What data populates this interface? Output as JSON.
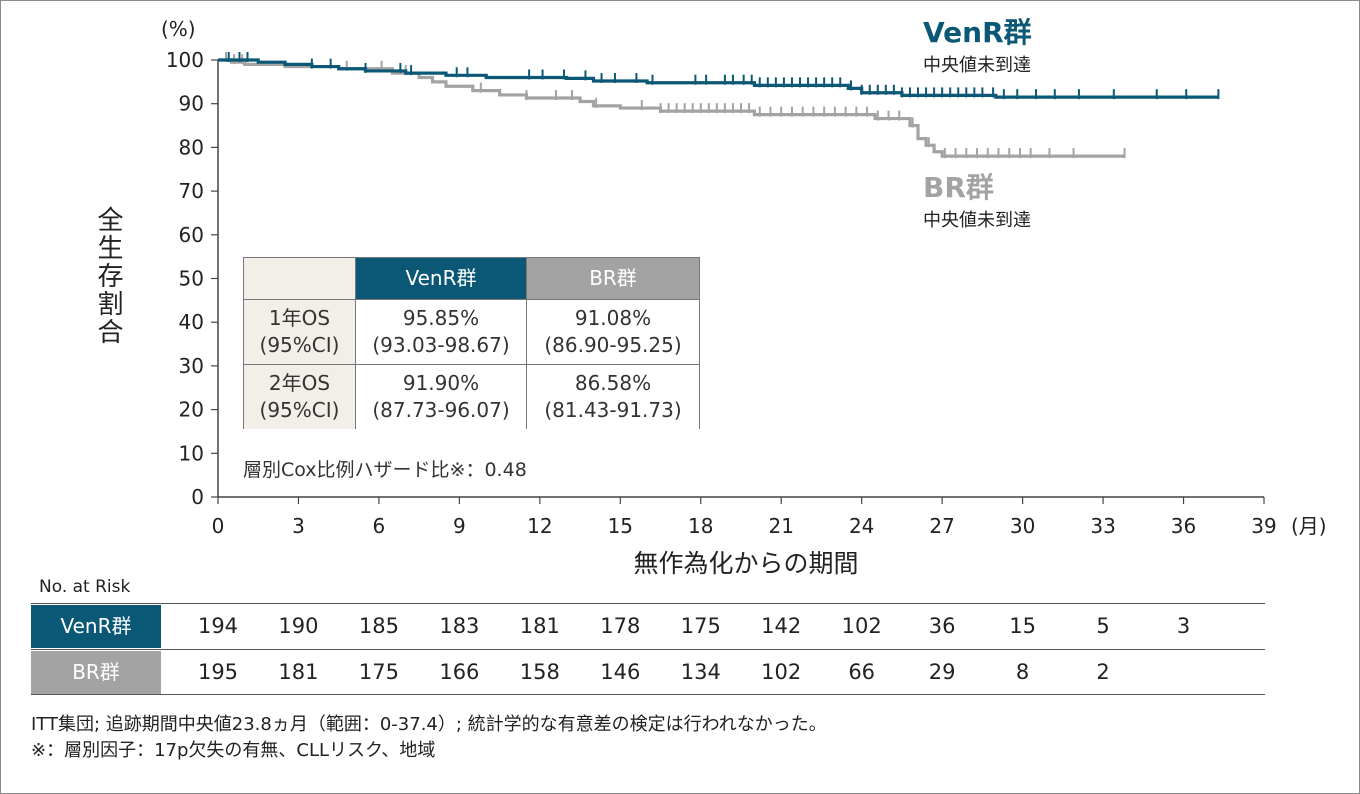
{
  "chart_data": {
    "type": "line",
    "chart_kind": "kaplan-meier",
    "xlabel": "無作為化からの期間",
    "ylabel": "全生存割合",
    "x_unit": "(月)",
    "y_unit": "(%)",
    "xlim": [
      0,
      39
    ],
    "ylim": [
      0,
      100
    ],
    "x_ticks": [
      0,
      3,
      6,
      9,
      12,
      15,
      18,
      21,
      24,
      27,
      30,
      33,
      36,
      39
    ],
    "y_ticks": [
      0,
      10,
      20,
      30,
      40,
      50,
      60,
      70,
      80,
      90,
      100
    ],
    "grid": false,
    "series": [
      {
        "name": "VenR群",
        "subtitle": "中央値未到達",
        "color": "#0b5876",
        "steps": [
          [
            0,
            100
          ],
          [
            1.5,
            99.5
          ],
          [
            2.5,
            99
          ],
          [
            3.5,
            98.5
          ],
          [
            4.5,
            98
          ],
          [
            5.5,
            97.5
          ],
          [
            7,
            97
          ],
          [
            8.5,
            96.5
          ],
          [
            10,
            96
          ],
          [
            13,
            95.8
          ],
          [
            14,
            95.2
          ],
          [
            16,
            94.8
          ],
          [
            20,
            94.2
          ],
          [
            23.5,
            93.5
          ],
          [
            24,
            92.5
          ],
          [
            25.5,
            91.9
          ],
          [
            29,
            91.5
          ],
          [
            37.3,
            91.5
          ]
        ],
        "censor_x": [
          0.4,
          0.8,
          1.1,
          3.5,
          4.2,
          5.5,
          6.8,
          7.2,
          8.9,
          9.3,
          11.6,
          12.1,
          12.9,
          13.7,
          14.3,
          14.8,
          15.6,
          16.2,
          17.8,
          18.2,
          18.9,
          19.2,
          19.6,
          19.9,
          20.2,
          20.5,
          20.8,
          21.1,
          21.4,
          21.7,
          22.0,
          22.3,
          22.6,
          22.9,
          23.2,
          23.6,
          24.0,
          24.3,
          24.6,
          24.9,
          25.2,
          25.5,
          25.8,
          26.1,
          26.4,
          26.7,
          27.0,
          27.3,
          27.6,
          27.9,
          28.2,
          28.5,
          28.9,
          29.3,
          29.8,
          30.5,
          31.2,
          32.1,
          33.4,
          35.0,
          36.1,
          37.3
        ]
      },
      {
        "name": "BR群",
        "subtitle": "中央値未到達",
        "color": "#a3a3a3",
        "steps": [
          [
            0,
            100
          ],
          [
            0.5,
            99.5
          ],
          [
            1,
            99
          ],
          [
            2.5,
            98.5
          ],
          [
            4.5,
            98
          ],
          [
            6.5,
            97
          ],
          [
            7.5,
            96
          ],
          [
            8,
            95
          ],
          [
            8.5,
            94
          ],
          [
            9.5,
            93
          ],
          [
            10.5,
            92
          ],
          [
            11.5,
            91.3
          ],
          [
            13.5,
            90.5
          ],
          [
            14,
            89.5
          ],
          [
            15,
            89
          ],
          [
            16.5,
            88.3
          ],
          [
            20,
            87.5
          ],
          [
            24.5,
            86.6
          ],
          [
            25.8,
            85
          ],
          [
            26.1,
            82
          ],
          [
            26.4,
            80.5
          ],
          [
            26.7,
            79
          ],
          [
            27,
            78
          ],
          [
            33.8,
            78
          ]
        ],
        "censor_x": [
          0.3,
          0.6,
          0.9,
          4.8,
          6.1,
          7.0,
          9.8,
          11.5,
          12.6,
          13.2,
          14.1,
          15.8,
          16.5,
          16.8,
          17.1,
          17.4,
          17.7,
          18.0,
          18.3,
          18.6,
          18.9,
          19.2,
          19.5,
          19.8,
          20.2,
          20.6,
          21.0,
          21.4,
          21.8,
          22.2,
          22.6,
          23.0,
          23.4,
          23.8,
          24.2,
          24.6,
          25.0,
          25.4,
          25.9,
          26.5,
          27.1,
          27.5,
          27.9,
          28.3,
          28.7,
          29.1,
          29.5,
          29.9,
          30.3,
          31.0,
          31.9,
          33.8
        ]
      }
    ],
    "os_table": {
      "headers": [
        "",
        "VenR群",
        "BR群"
      ],
      "rows": [
        {
          "label1": "1年OS",
          "label2": "(95%CI)",
          "venr": "95.85%",
          "venr_ci": "(93.03-98.67)",
          "br": "91.08%",
          "br_ci": "(86.90-95.25)"
        },
        {
          "label1": "2年OS",
          "label2": "(95%CI)",
          "venr": "91.90%",
          "venr_ci": "(87.73-96.07)",
          "br": "86.58%",
          "br_ci": "(81.43-91.73)"
        }
      ],
      "hr_note": "層別Cox比例ハザード比※：0.48"
    },
    "risk_table": {
      "title": "No. at Risk",
      "times": [
        0,
        3,
        6,
        9,
        12,
        15,
        18,
        21,
        24,
        27,
        30,
        33,
        36
      ],
      "rows": [
        {
          "label": "VenR群",
          "color": "#0b5876",
          "values": [
            "194",
            "190",
            "185",
            "183",
            "181",
            "178",
            "175",
            "142",
            "102",
            "36",
            "15",
            "5",
            "3"
          ]
        },
        {
          "label": "BR群",
          "color": "#a3a3a3",
          "values": [
            "195",
            "181",
            "175",
            "166",
            "158",
            "146",
            "134",
            "102",
            "66",
            "29",
            "8",
            "2",
            ""
          ]
        }
      ]
    },
    "footnotes": [
      "ITT集団; 追跡期間中央値23.8ヵ月（範囲：0-37.4）; 統計学的な有意差の検定は行われなかった。",
      "※：層別因子：17p欠失の有無、CLLリスク、地域"
    ]
  }
}
